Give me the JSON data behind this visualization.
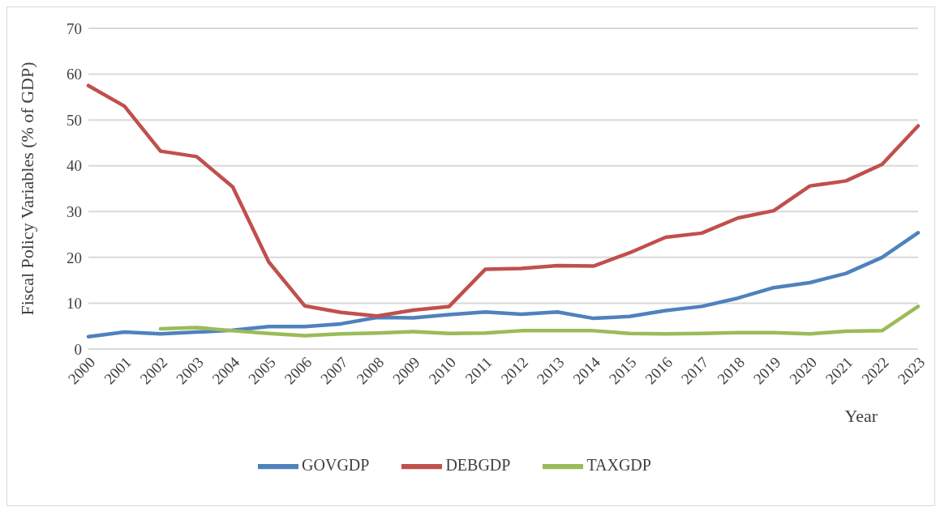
{
  "chart_data": {
    "type": "line",
    "ylabel": "Fiscal Policy Variables (% of GDP)",
    "xlabel": "Year",
    "categories": [
      "2000",
      "2001",
      "2002",
      "2003",
      "2004",
      "2005",
      "2006",
      "2007",
      "2008",
      "2009",
      "2010",
      "2011",
      "2012",
      "2013",
      "2014",
      "2015",
      "2016",
      "2017",
      "2018",
      "2019",
      "2020",
      "2021",
      "2022",
      "2023"
    ],
    "series": [
      {
        "name": "GOVGDP",
        "color": "#4f81bd",
        "values": [
          2.7,
          3.7,
          3.3,
          3.7,
          4.1,
          4.9,
          4.9,
          5.5,
          6.9,
          6.8,
          7.5,
          8.1,
          7.6,
          8.1,
          6.7,
          7.1,
          8.4,
          9.3,
          11.1,
          13.4,
          14.5,
          16.5,
          20,
          25.4
        ]
      },
      {
        "name": "DEBGDP",
        "color": "#c0504d",
        "values": [
          57.5,
          53,
          43.2,
          42,
          35.4,
          19,
          9.4,
          8,
          7.2,
          8.5,
          9.3,
          17.4,
          17.6,
          18.2,
          18.1,
          21,
          24.4,
          25.3,
          28.6,
          30.2,
          35.6,
          36.7,
          40.3,
          48.7
        ]
      },
      {
        "name": "TAXGDP",
        "color": "#9bbb59",
        "values": [
          null,
          null,
          4.4,
          4.7,
          4,
          3.4,
          2.9,
          3.3,
          3.5,
          3.8,
          3.4,
          3.5,
          4,
          4,
          4,
          3.4,
          3.3,
          3.4,
          3.6,
          3.6,
          3.3,
          3.9,
          4,
          9.3
        ]
      }
    ],
    "ylim": [
      0,
      70
    ],
    "yticks": [
      0,
      10,
      20,
      30,
      40,
      50,
      60,
      70
    ],
    "grid": "y",
    "legend": "bottom",
    "marker": "none",
    "line_style": "solid"
  }
}
